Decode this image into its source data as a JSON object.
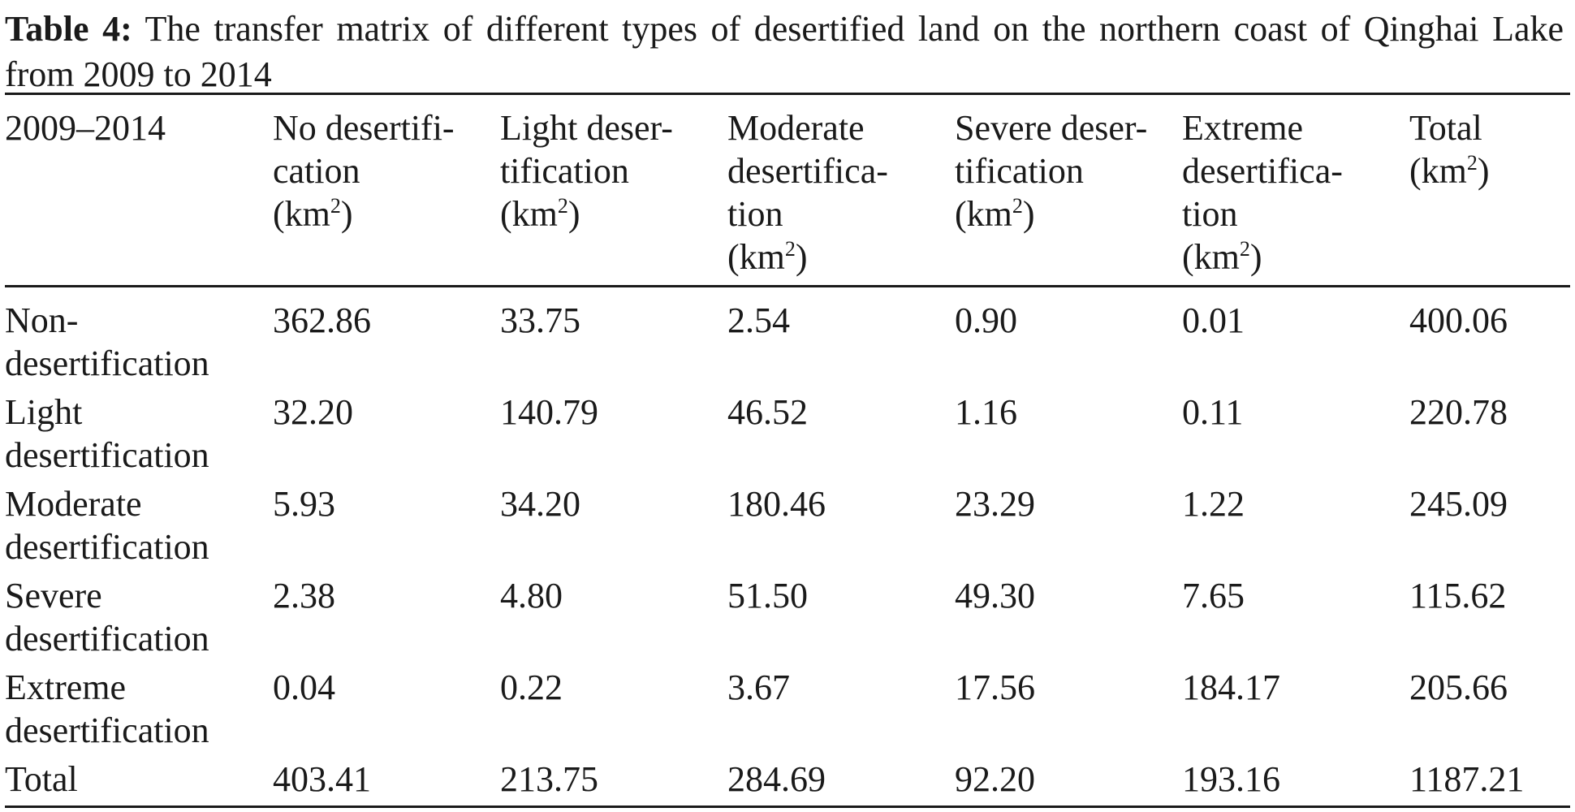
{
  "caption": {
    "label": "Table 4:",
    "text": "The transfer matrix of different types of desertified land on the northern coast of Qinghai Lake from 2009 to 2014"
  },
  "table": {
    "corner": "2009–2014",
    "columns": [
      {
        "lines": [
          "No desertifi-",
          "cation"
        ],
        "unit": "(km",
        "sup": "2",
        "close": ")"
      },
      {
        "lines": [
          "Light deser-",
          "tification"
        ],
        "unit": "(km",
        "sup": "2",
        "close": ")"
      },
      {
        "lines": [
          "Moderate",
          "desertifica-",
          "tion"
        ],
        "unit": "(km",
        "sup": "2",
        "close": ")"
      },
      {
        "lines": [
          "Severe deser-",
          "tification"
        ],
        "unit": "(km",
        "sup": "2",
        "close": ")"
      },
      {
        "lines": [
          "Extreme",
          "desertifica-",
          "tion"
        ],
        "unit": "(km",
        "sup": "2",
        "close": ")"
      },
      {
        "lines": [
          "Total"
        ],
        "unit": "(km",
        "sup": "2",
        "close": ")"
      }
    ],
    "rows": [
      {
        "label": [
          "Non-",
          "desertification"
        ],
        "values": [
          "362.86",
          "33.75",
          "2.54",
          "0.90",
          "0.01",
          "400.06"
        ]
      },
      {
        "label": [
          "Light",
          "desertification"
        ],
        "values": [
          "32.20",
          "140.79",
          "46.52",
          "1.16",
          "0.11",
          "220.78"
        ]
      },
      {
        "label": [
          "Moderate",
          "desertification"
        ],
        "values": [
          "5.93",
          "34.20",
          "180.46",
          "23.29",
          "1.22",
          "245.09"
        ]
      },
      {
        "label": [
          "Severe",
          "desertification"
        ],
        "values": [
          "2.38",
          "4.80",
          "51.50",
          "49.30",
          "7.65",
          "115.62"
        ]
      },
      {
        "label": [
          "Extreme",
          "desertification"
        ],
        "values": [
          "0.04",
          "0.22",
          "3.67",
          "17.56",
          "184.17",
          "205.66"
        ]
      },
      {
        "label": [
          "Total"
        ],
        "values": [
          "403.41",
          "213.75",
          "284.69",
          "92.20",
          "193.16",
          "1187.21"
        ]
      }
    ]
  }
}
